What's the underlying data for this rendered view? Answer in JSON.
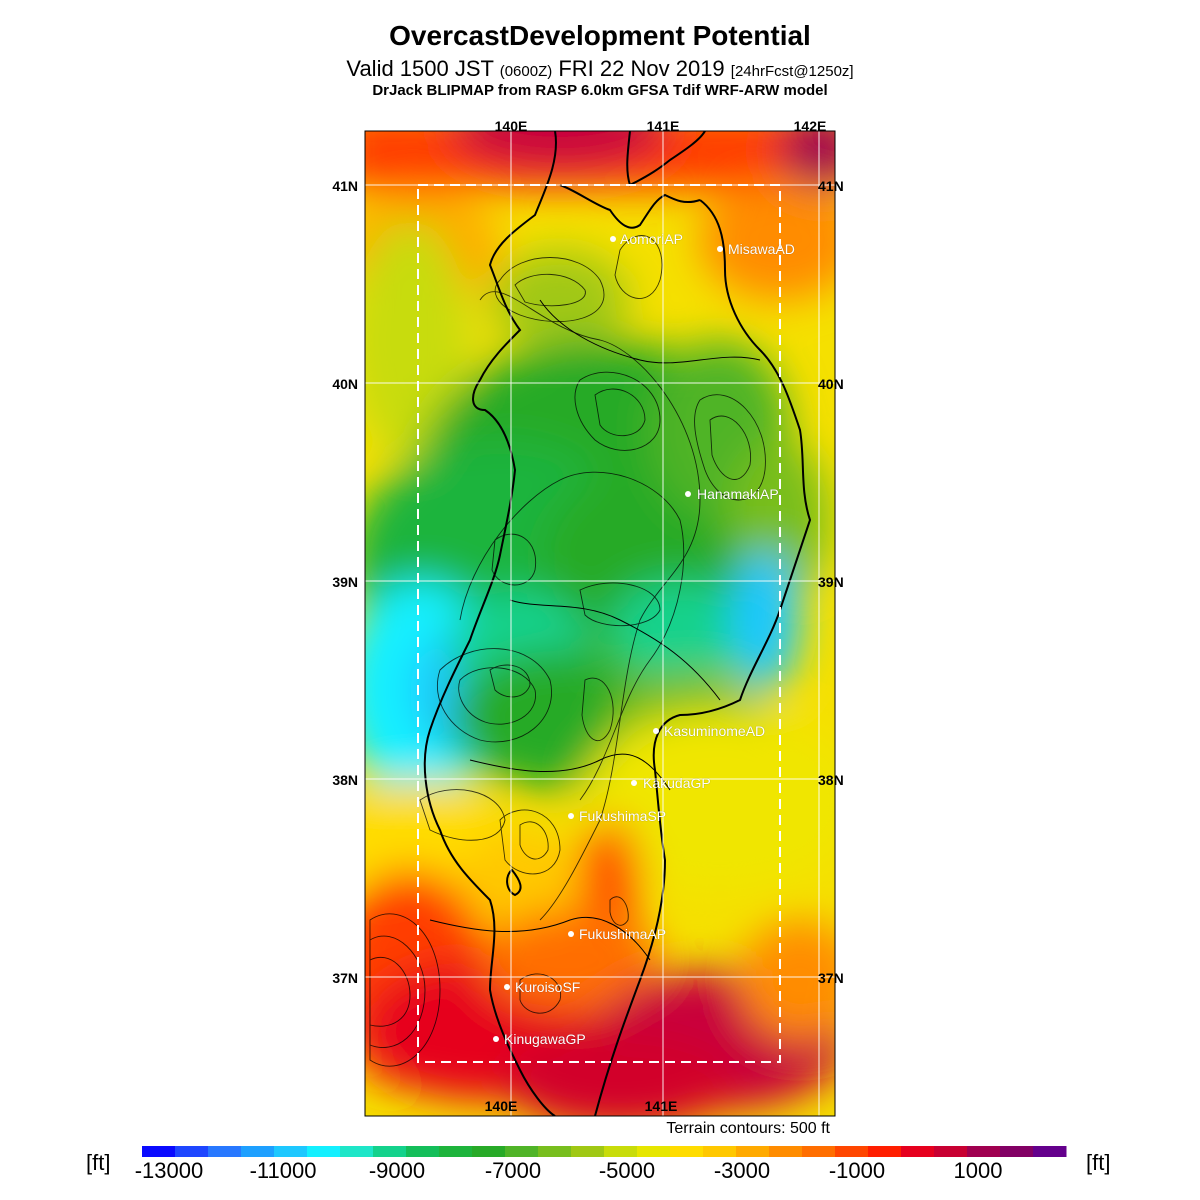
{
  "header": {
    "title": "OvercastDevelopment Potential",
    "valid_main": "Valid 1500 JST",
    "valid_utc": "(0600Z)",
    "valid_date": "FRI 22 Nov 2019",
    "forecast_info": "[24hrFcst@1250z]",
    "model": "DrJack BLIPMAP from RASP 6.0km GFSA Tdif WRF-ARW model"
  },
  "map": {
    "lon_labels": [
      "140E",
      "141E",
      "142E"
    ],
    "lat_labels": [
      "41N",
      "40N",
      "39N",
      "38N",
      "37N"
    ],
    "cities": [
      "AomoriAP",
      "MisawaAD",
      "HanamakiAP",
      "KasuminomeAD",
      "KakudaGP",
      "FukushimaSP",
      "FukushimaAP",
      "KuroisoSF",
      "KinugawaGP"
    ],
    "terrain_note": "Terrain contours: 500 ft"
  },
  "legend": {
    "unit": "[ft]",
    "tick_labels": [
      "-13000",
      "-11000",
      "-9000",
      "-7000",
      "-5000",
      "-3000",
      "-1000",
      "1000"
    ],
    "colors": [
      "#0a0aff",
      "#1e46ff",
      "#2878ff",
      "#1ea0ff",
      "#1ec8ff",
      "#14f0ff",
      "#1ee6c8",
      "#14d28c",
      "#14be5a",
      "#1eb43c",
      "#28aa28",
      "#50b428",
      "#78be1e",
      "#a0c814",
      "#c8dc0a",
      "#e6e600",
      "#ffdc00",
      "#ffc800",
      "#ffaa00",
      "#ff8c00",
      "#ff6e00",
      "#ff4600",
      "#ff1e00",
      "#e6001e",
      "#c80032",
      "#a00050",
      "#820064",
      "#64008c"
    ]
  },
  "chart_data": {
    "type": "heatmap",
    "title": "OvercastDevelopment Potential",
    "units": "ft",
    "color_range": [
      -14000,
      2000
    ],
    "contour_interval_ft": 500,
    "lon_range": [
      "139.1E",
      "142.1E"
    ],
    "lat_range": [
      "36.3N",
      "41.2N"
    ]
  }
}
